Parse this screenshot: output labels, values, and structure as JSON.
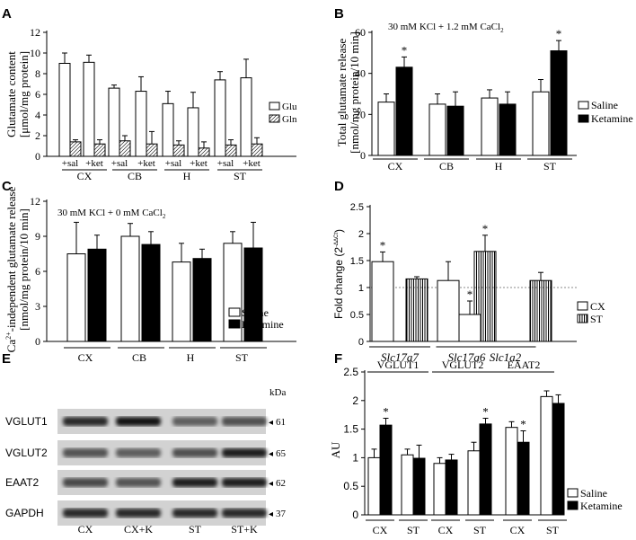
{
  "chart_data": [
    {
      "panel": "A",
      "type": "bar",
      "ylabel": [
        "Glutamate content",
        "[μmol/mg protein]"
      ],
      "ylim": [
        0,
        12
      ],
      "yticks": [
        "0",
        "2",
        "4",
        "6",
        "8",
        "10",
        "12"
      ],
      "groups": [
        "CX",
        "CB",
        "H",
        "ST"
      ],
      "treatments": [
        "+sal",
        "+ket"
      ],
      "series": [
        {
          "name": "Glu",
          "values": [
            9.0,
            9.1,
            6.6,
            6.3,
            5.1,
            4.7,
            7.4,
            7.6
          ],
          "errors": [
            1.0,
            0.7,
            0.3,
            1.4,
            1.2,
            1.5,
            0.8,
            1.8
          ]
        },
        {
          "name": "Gln",
          "values": [
            1.4,
            1.2,
            1.5,
            1.2,
            1.1,
            0.8,
            1.1,
            1.2
          ],
          "errors": [
            0.2,
            0.4,
            0.5,
            1.2,
            0.4,
            0.6,
            0.5,
            0.6
          ]
        }
      ],
      "legend_location": "right"
    },
    {
      "panel": "B",
      "type": "bar",
      "annotation": "30 mM KCl + 1.2 mM CaCl",
      "annotation_sub": "2",
      "ylabel": [
        "Total glutamate release",
        "[nmol/mg protein/10 min]"
      ],
      "ylim": [
        0,
        60
      ],
      "yticks": [
        "0",
        "20",
        "40",
        "60"
      ],
      "categories": [
        "CX",
        "CB",
        "H",
        "ST"
      ],
      "series": [
        {
          "name": "Saline",
          "values": [
            26,
            25,
            28,
            31
          ],
          "errors": [
            4,
            5,
            4,
            6
          ]
        },
        {
          "name": "Ketamine",
          "values": [
            43,
            24,
            25,
            51
          ],
          "errors": [
            5,
            7,
            6,
            5
          ]
        }
      ],
      "significance": [
        "*",
        "",
        "",
        "*"
      ],
      "legend_location": "right"
    },
    {
      "panel": "C",
      "type": "bar",
      "annotation": "30 mM KCl + 0 mM CaCl",
      "annotation_sub": "2",
      "ylabel_sup": "2+",
      "ylabel": [
        "Ca",
        "-independent glutamate release",
        "[nmol/mg protein/10 min]"
      ],
      "ylim": [
        0,
        12
      ],
      "yticks": [
        "0",
        "3",
        "6",
        "9",
        "12"
      ],
      "categories": [
        "CX",
        "CB",
        "H",
        "ST"
      ],
      "series": [
        {
          "name": "Saline",
          "values": [
            7.5,
            9.0,
            6.8,
            8.4
          ],
          "errors": [
            2.7,
            1.1,
            1.6,
            1.0
          ]
        },
        {
          "name": "Ketamine",
          "values": [
            7.9,
            8.3,
            7.1,
            8.0
          ],
          "errors": [
            1.2,
            1.1,
            0.8,
            2.2
          ]
        }
      ],
      "legend_location": "bottom-right"
    },
    {
      "panel": "D",
      "type": "bar",
      "ylabel": "Fold change (2",
      "ylabel_sup": "-ΔΔCt",
      "ylabel_close": ")",
      "ylim": [
        0,
        2.5
      ],
      "yticks": [
        "0",
        "0.5",
        "1",
        "1.5",
        "2",
        "2.5"
      ],
      "reference_line": 1,
      "categories": [
        "Slc17a7",
        "Slc17a6",
        "Slc1a2"
      ],
      "series": [
        {
          "name": "CX",
          "values": [
            1.48,
            1.13,
            0.5
          ],
          "errors": [
            0.18,
            0.35,
            0.25
          ]
        },
        {
          "name": "ST",
          "values": [
            1.16,
            1.67,
            1.13
          ],
          "errors": [
            0.04,
            0.3,
            0.15
          ]
        }
      ],
      "significance": [
        [
          "*",
          ""
        ],
        [
          "",
          "*"
        ],
        [
          "*",
          ""
        ]
      ],
      "legend_location": "right"
    },
    {
      "panel": "F",
      "type": "bar",
      "ylabel": "AU",
      "ylim": [
        0,
        2.5
      ],
      "yticks": [
        "0",
        "0.5",
        "1",
        "1.5",
        "2",
        "2.5"
      ],
      "proteins": [
        "VGLUT1",
        "VGLUT2",
        "EAAT2"
      ],
      "categories": [
        "CX",
        "ST",
        "CX",
        "ST",
        "CX",
        "ST"
      ],
      "series": [
        {
          "name": "Saline",
          "values": [
            1.0,
            1.05,
            0.9,
            1.12,
            1.53,
            2.07
          ],
          "errors": [
            0.15,
            0.1,
            0.1,
            0.15,
            0.1,
            0.1
          ]
        },
        {
          "name": "Ketamine",
          "values": [
            1.57,
            0.99,
            0.96,
            1.59,
            1.27,
            1.95
          ],
          "errors": [
            0.12,
            0.23,
            0.1,
            0.1,
            0.2,
            0.15
          ]
        }
      ],
      "significance": [
        [
          "",
          "*"
        ],
        [
          "",
          ""
        ],
        [
          "",
          ""
        ],
        [
          "",
          "*"
        ],
        [
          "",
          "*"
        ],
        [
          "",
          ""
        ]
      ],
      "legend_location": "bottom-right"
    }
  ],
  "blot": {
    "panel": "E",
    "unit": "kDa",
    "rows": [
      {
        "label": "VGLUT1",
        "kda": "61"
      },
      {
        "label": "VGLUT2",
        "kda": "65"
      },
      {
        "label": "EAAT2",
        "kda": "62"
      },
      {
        "label": "GAPDH",
        "kda": "37"
      }
    ],
    "lanes": [
      "CX",
      "CX+K",
      "ST",
      "ST+K"
    ],
    "intensities": [
      [
        0.8,
        0.9,
        0.55,
        0.62
      ],
      [
        0.6,
        0.55,
        0.62,
        0.85
      ],
      [
        0.65,
        0.6,
        0.85,
        0.85
      ],
      [
        0.8,
        0.8,
        0.8,
        0.8
      ]
    ]
  },
  "colors": {
    "saline": "#ffffff",
    "ketamine": "#000000",
    "axis": "#000000",
    "blot_bg": "#d2d2d2",
    "reference_line": "#888888"
  }
}
